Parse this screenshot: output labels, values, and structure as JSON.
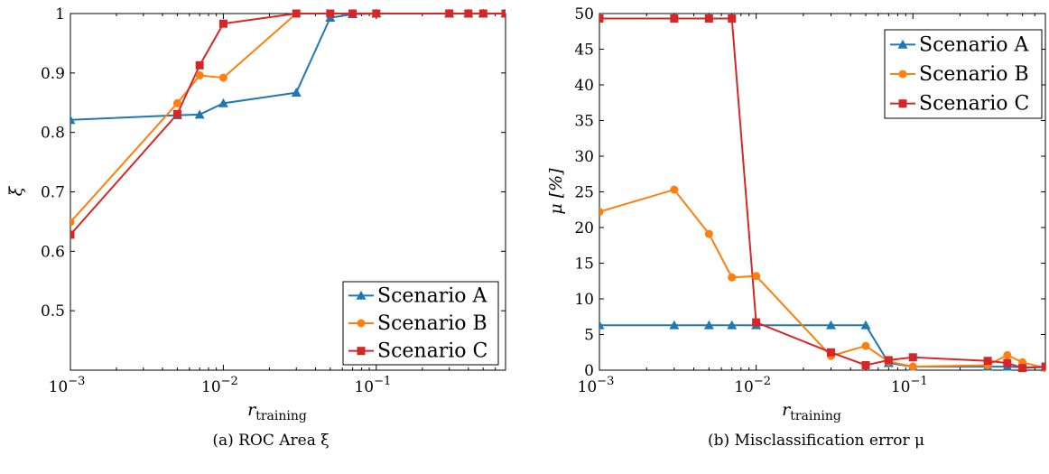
{
  "chart_data": [
    {
      "type": "line",
      "caption": "(a) ROC Area ξ",
      "xlabel": "r",
      "xlabel_sub": "training",
      "ylabel": "ξ",
      "xscale": "log",
      "xlim": [
        0.001,
        0.7
      ],
      "ylim": [
        0.4,
        1.0
      ],
      "yticks": [
        0.5,
        0.6,
        0.7,
        0.8,
        0.9,
        1
      ],
      "ytick_labels": [
        "0.5",
        "0.6",
        "0.7",
        "0.8",
        "0.9",
        "1"
      ],
      "xticks": [
        {
          "value": 0.001,
          "base": "10",
          "exp": "−3"
        },
        {
          "value": 0.01,
          "base": "10",
          "exp": "−2"
        },
        {
          "value": 0.1,
          "base": "10",
          "exp": "−1"
        }
      ],
      "legend_position": "bottom-right",
      "series": [
        {
          "name": "Scenario A",
          "color": "#1f77b4",
          "marker": "triangle",
          "x": [
            0.001,
            0.005,
            0.007,
            0.01,
            0.03,
            0.05,
            0.07,
            0.1,
            0.3,
            0.4,
            0.5,
            0.7
          ],
          "y": [
            0.821,
            0.829,
            0.83,
            0.849,
            0.867,
            0.993,
            0.999,
            1.0,
            1.0,
            1.0,
            1.0,
            1.0
          ]
        },
        {
          "name": "Scenario B",
          "color": "#ff7f0e",
          "marker": "circle",
          "x": [
            0.001,
            0.005,
            0.007,
            0.01,
            0.03,
            0.05,
            0.07,
            0.1,
            0.3,
            0.4,
            0.5,
            0.7
          ],
          "y": [
            0.649,
            0.849,
            0.896,
            0.892,
            1.0,
            1.0,
            1.0,
            1.0,
            1.0,
            1.0,
            1.0,
            1.0
          ]
        },
        {
          "name": "Scenario C",
          "color": "#d62728",
          "marker": "square",
          "x": [
            0.001,
            0.005,
            0.007,
            0.01,
            0.03,
            0.05,
            0.07,
            0.1,
            0.3,
            0.4,
            0.5,
            0.7
          ],
          "y": [
            0.628,
            0.831,
            0.913,
            0.983,
            1.0,
            1.0,
            1.0,
            1.0,
            1.0,
            1.0,
            1.0,
            1.0
          ]
        }
      ]
    },
    {
      "type": "line",
      "caption": "(b) Misclassification error μ",
      "xlabel": "r",
      "xlabel_sub": "training",
      "ylabel": "μ [%]",
      "xscale": "log",
      "xlim": [
        0.001,
        0.7
      ],
      "ylim": [
        0,
        50
      ],
      "yticks": [
        0,
        5,
        10,
        15,
        20,
        25,
        30,
        35,
        40,
        45,
        50
      ],
      "ytick_labels": [
        "0",
        "5",
        "10",
        "15",
        "20",
        "25",
        "30",
        "35",
        "40",
        "45",
        "50"
      ],
      "xticks": [
        {
          "value": 0.001,
          "base": "10",
          "exp": "−3"
        },
        {
          "value": 0.01,
          "base": "10",
          "exp": "−2"
        },
        {
          "value": 0.1,
          "base": "10",
          "exp": "−1"
        }
      ],
      "legend_position": "top-right",
      "series": [
        {
          "name": "Scenario A",
          "color": "#1f77b4",
          "marker": "triangle",
          "x": [
            0.001,
            0.003,
            0.005,
            0.007,
            0.01,
            0.03,
            0.05,
            0.07,
            0.1,
            0.3,
            0.4,
            0.5,
            0.7
          ],
          "y": [
            6.3,
            6.3,
            6.3,
            6.3,
            6.3,
            6.3,
            6.3,
            1.0,
            0.5,
            0.5,
            0.5,
            0.4,
            0.4
          ]
        },
        {
          "name": "Scenario B",
          "color": "#ff7f0e",
          "marker": "circle",
          "x": [
            0.001,
            0.003,
            0.005,
            0.007,
            0.01,
            0.03,
            0.05,
            0.07,
            0.1,
            0.3,
            0.4,
            0.5,
            0.7
          ],
          "y": [
            22.2,
            25.3,
            19.1,
            13.0,
            13.2,
            2.0,
            3.4,
            1.2,
            0.5,
            0.7,
            2.1,
            1.1,
            0.3
          ]
        },
        {
          "name": "Scenario C",
          "color": "#d62728",
          "marker": "square",
          "x": [
            0.001,
            0.003,
            0.005,
            0.007,
            0.01,
            0.03,
            0.05,
            0.07,
            0.1,
            0.3,
            0.4,
            0.5,
            0.7
          ],
          "y": [
            49.3,
            49.3,
            49.3,
            49.3,
            6.7,
            2.5,
            0.7,
            1.4,
            1.8,
            1.3,
            1.0,
            0.3,
            0.5
          ]
        }
      ]
    }
  ]
}
